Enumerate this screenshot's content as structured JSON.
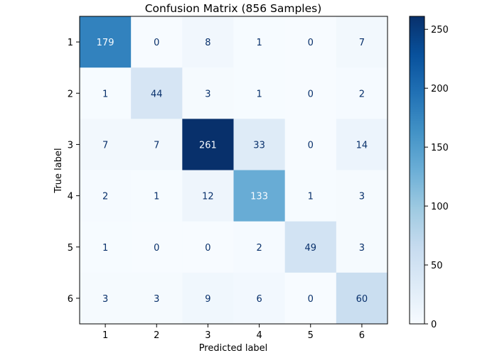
{
  "chart_data": {
    "type": "heatmap",
    "title": "Confusion Matrix (856 Samples)",
    "xlabel": "Predicted label",
    "ylabel": "True label",
    "x_categories": [
      "1",
      "2",
      "3",
      "4",
      "5",
      "6"
    ],
    "y_categories": [
      "1",
      "2",
      "3",
      "4",
      "5",
      "6"
    ],
    "matrix": [
      [
        179,
        0,
        8,
        1,
        0,
        7
      ],
      [
        1,
        44,
        3,
        1,
        0,
        2
      ],
      [
        7,
        7,
        261,
        33,
        0,
        14
      ],
      [
        2,
        1,
        12,
        133,
        1,
        3
      ],
      [
        1,
        0,
        0,
        2,
        49,
        3
      ],
      [
        3,
        3,
        9,
        6,
        0,
        60
      ]
    ],
    "colormap": "Blues",
    "vmin": 0,
    "vmax": 261,
    "colorbar_ticks": [
      "0",
      "50",
      "100",
      "150",
      "200",
      "250"
    ]
  }
}
